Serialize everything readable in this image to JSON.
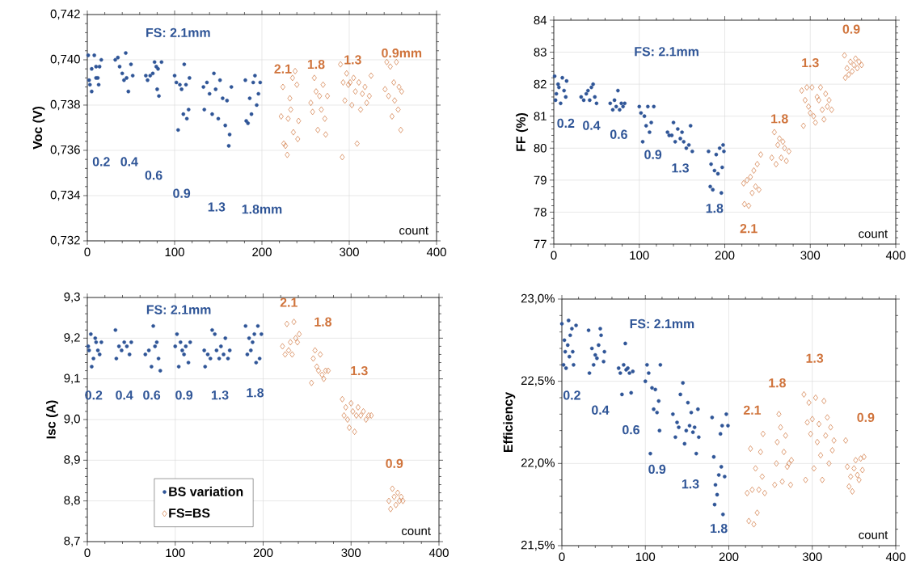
{
  "chart_data": [
    {
      "type": "scatter",
      "ylabel": "Voc (V)",
      "xlabel": "count",
      "grid": true,
      "xlim": [
        0,
        400
      ],
      "xticks": [
        0,
        100,
        200,
        300,
        400
      ],
      "ylim": [
        0.732,
        0.742
      ],
      "yticks": [
        {
          "value": 0.732,
          "label": "0,732"
        },
        {
          "value": 0.734,
          "label": "0,734"
        },
        {
          "value": 0.736,
          "label": "0,736"
        },
        {
          "value": 0.738,
          "label": "0,738"
        },
        {
          "value": 0.74,
          "label": "0,740"
        },
        {
          "value": 0.742,
          "label": "0,742"
        }
      ],
      "series": [
        {
          "color": "#2f5597",
          "marker": "circle",
          "x": [
            1,
            2,
            3,
            5,
            5,
            8,
            10,
            10,
            12,
            13,
            14,
            16,
            32,
            35,
            37,
            40,
            42,
            44,
            45,
            47,
            50,
            52,
            67,
            69,
            72,
            75,
            77,
            79,
            80,
            82,
            81,
            85,
            100,
            102,
            104,
            106,
            108,
            110,
            111,
            113,
            114,
            116,
            117,
            133,
            134,
            137,
            140,
            143,
            145,
            147,
            150,
            152,
            155,
            158,
            160,
            162,
            163,
            165,
            181,
            182,
            184,
            186,
            188,
            190,
            192,
            194,
            196,
            198
          ],
          "values": [
            0.7402,
            0.7391,
            0.7389,
            0.7396,
            0.7386,
            0.7402,
            0.7397,
            0.7392,
            0.7392,
            0.7389,
            0.7397,
            0.74,
            0.74,
            0.7401,
            0.7397,
            0.7394,
            0.7391,
            0.7403,
            0.7392,
            0.7386,
            0.7398,
            0.7393,
            0.7393,
            0.7391,
            0.7393,
            0.7394,
            0.7399,
            0.7397,
            0.7387,
            0.7384,
            0.7396,
            0.7399,
            0.7393,
            0.739,
            0.7369,
            0.7389,
            0.7387,
            0.7376,
            0.7398,
            0.7389,
            0.7374,
            0.7378,
            0.7392,
            0.7388,
            0.7378,
            0.739,
            0.7385,
            0.7376,
            0.7394,
            0.7387,
            0.7374,
            0.7391,
            0.7383,
            0.7371,
            0.7382,
            0.7362,
            0.7367,
            0.7388,
            0.7391,
            0.7373,
            0.7372,
            0.7383,
            0.7376,
            0.739,
            0.7393,
            0.738,
            0.7385,
            0.739
          ]
        },
        {
          "color": "#d0743c",
          "marker": "diamond",
          "x": [
            222,
            224,
            225,
            227,
            229,
            230,
            232,
            233,
            235,
            236,
            238,
            240,
            241,
            242,
            256,
            258,
            260,
            262,
            264,
            266,
            268,
            270,
            272,
            273,
            275,
            290,
            292,
            293,
            295,
            297,
            299,
            301,
            303,
            305,
            307,
            309,
            311,
            313,
            315,
            318,
            320,
            323,
            325,
            341,
            343,
            345,
            347,
            349,
            351,
            352,
            354,
            356,
            357,
            359,
            360
          ],
          "values": [
            0.7375,
            0.7388,
            0.7363,
            0.7362,
            0.7358,
            0.7374,
            0.7383,
            0.7378,
            0.7392,
            0.7368,
            0.7395,
            0.7389,
            0.7365,
            0.7373,
            0.7381,
            0.7377,
            0.7392,
            0.7386,
            0.7369,
            0.7384,
            0.7378,
            0.7389,
            0.7374,
            0.7367,
            0.7384,
            0.7398,
            0.7357,
            0.739,
            0.7382,
            0.7394,
            0.7389,
            0.739,
            0.738,
            0.7392,
            0.7386,
            0.7363,
            0.739,
            0.7378,
            0.7385,
            0.7388,
            0.7381,
            0.7384,
            0.7393,
            0.7387,
            0.7399,
            0.7384,
            0.7397,
            0.7375,
            0.739,
            0.7382,
            0.7399,
            0.7378,
            0.7388,
            0.7369,
            0.7386
          ]
        }
      ],
      "annotations": [
        "FS: 2.1mm",
        "0.2",
        "0.4",
        "0.6",
        "0.9",
        "1.3",
        "1.8mm",
        "2.1",
        "1.8",
        "1.3",
        "0.9mm"
      ]
    },
    {
      "type": "scatter",
      "ylabel": "FF (%)",
      "xlabel": "count",
      "grid": true,
      "xlim": [
        0,
        400
      ],
      "xticks": [
        0,
        100,
        200,
        300,
        400
      ],
      "ylim": [
        77,
        84
      ],
      "yticks": [
        77,
        78,
        79,
        80,
        81,
        82,
        83,
        84
      ],
      "series": [
        {
          "color": "#2f5597",
          "marker": "circle",
          "x": [
            1,
            2,
            3,
            5,
            6,
            8,
            10,
            12,
            14,
            15,
            32,
            35,
            38,
            40,
            42,
            44,
            46,
            48,
            50,
            66,
            69,
            71,
            73,
            75,
            77,
            79,
            81,
            83,
            100,
            102,
            104,
            106,
            108,
            110,
            112,
            114,
            117,
            133,
            135,
            138,
            140,
            142,
            145,
            148,
            150,
            152,
            155,
            158,
            160,
            162,
            181,
            183,
            184,
            186,
            188,
            190,
            192,
            194,
            196,
            197,
            198,
            199
          ],
          "values": [
            82.25,
            81.5,
            81.7,
            82.0,
            81.9,
            81.4,
            82.2,
            81.8,
            81.6,
            82.1,
            81.6,
            81.5,
            81.7,
            81.8,
            81.5,
            81.9,
            82.0,
            81.6,
            81.4,
            81.4,
            81.2,
            81.5,
            81.3,
            81.8,
            81.2,
            81.4,
            81.3,
            81.4,
            81.3,
            81.1,
            80.2,
            81.0,
            80.7,
            81.3,
            80.5,
            80.8,
            81.3,
            80.5,
            80.4,
            80.4,
            80.8,
            80.2,
            80.6,
            80.3,
            80.5,
            80.2,
            80.0,
            80.1,
            80.7,
            79.9,
            79.9,
            78.8,
            79.5,
            78.7,
            79.3,
            79.8,
            79.2,
            80.0,
            78.6,
            79.4,
            80.1,
            79.9
          ]
        },
        {
          "color": "#d0743c",
          "marker": "diamond",
          "x": [
            222,
            223,
            226,
            228,
            230,
            232,
            234,
            236,
            238,
            240,
            242,
            255,
            258,
            260,
            262,
            264,
            266,
            268,
            270,
            272,
            275,
            290,
            292,
            294,
            296,
            298,
            300,
            302,
            304,
            306,
            308,
            310,
            312,
            314,
            316,
            318,
            320,
            322,
            325,
            340,
            341,
            343,
            345,
            347,
            349,
            351,
            353,
            355,
            357,
            360
          ],
          "values": [
            78.9,
            78.25,
            79.0,
            78.2,
            79.1,
            78.6,
            79.3,
            78.8,
            79.5,
            78.7,
            79.8,
            79.7,
            80.5,
            79.5,
            80.1,
            80.3,
            79.7,
            80.2,
            80.0,
            79.6,
            79.9,
            81.8,
            80.7,
            81.5,
            81.9,
            81.3,
            81.1,
            81.9,
            81.0,
            80.8,
            81.6,
            81.5,
            81.9,
            81.2,
            80.9,
            81.7,
            81.3,
            81.5,
            81.2,
            82.9,
            82.2,
            82.5,
            82.3,
            82.7,
            82.4,
            82.6,
            82.8,
            82.5,
            82.7,
            82.6
          ]
        }
      ],
      "annotations": [
        "FS: 2.1mm",
        "0.2",
        "0.4",
        "0.6",
        "0.9",
        "1.3",
        "1.8",
        "2.1",
        "1.8",
        "1.3",
        "0.9"
      ]
    },
    {
      "type": "scatter",
      "ylabel": "Isc (A)",
      "xlabel": "count",
      "grid": true,
      "legend": "bottom left",
      "xlim": [
        0,
        400
      ],
      "xticks": [
        0,
        100,
        200,
        300,
        400
      ],
      "ylim": [
        8.7,
        9.3
      ],
      "yticks": [
        {
          "value": 8.7,
          "label": "8,7"
        },
        {
          "value": 8.8,
          "label": "8,8"
        },
        {
          "value": 8.9,
          "label": "8,9"
        },
        {
          "value": 9.0,
          "label": "9,0"
        },
        {
          "value": 9.1,
          "label": "9,1"
        },
        {
          "value": 9.2,
          "label": "9,2"
        },
        {
          "value": 9.3,
          "label": "9,3"
        }
      ],
      "series": [
        {
          "name": "BS variation",
          "color": "#2f5597",
          "marker": "circle",
          "x": [
            1,
            2,
            4,
            5,
            7,
            9,
            10,
            12,
            14,
            16,
            32,
            33,
            36,
            39,
            42,
            45,
            48,
            50,
            66,
            70,
            73,
            75,
            77,
            79,
            81,
            83,
            100,
            102,
            104,
            106,
            108,
            110,
            112,
            115,
            117,
            133,
            134,
            137,
            140,
            142,
            145,
            147,
            150,
            152,
            155,
            157,
            160,
            162,
            180,
            182,
            184,
            186,
            188,
            190,
            192,
            194,
            196,
            198
          ],
          "values": [
            9.18,
            9.17,
            9.21,
            9.13,
            9.15,
            9.2,
            9.19,
            9.17,
            9.16,
            9.19,
            9.22,
            9.15,
            9.18,
            9.17,
            9.19,
            9.18,
            9.16,
            9.19,
            9.16,
            9.17,
            9.13,
            9.23,
            9.18,
            9.19,
            9.15,
            9.12,
            9.18,
            9.21,
            9.13,
            9.19,
            9.17,
            9.16,
            9.18,
            9.14,
            9.19,
            9.17,
            9.13,
            9.16,
            9.15,
            9.22,
            9.21,
            9.17,
            9.15,
            9.18,
            9.16,
            9.2,
            9.15,
            9.17,
            9.23,
            9.16,
            9.2,
            9.17,
            9.19,
            9.21,
            9.14,
            9.23,
            9.15,
            9.21
          ]
        },
        {
          "name": "FS=BS",
          "color": "#d0743c",
          "marker": "diamond",
          "x": [
            222,
            225,
            227,
            229,
            231,
            233,
            235,
            237,
            239,
            241,
            255,
            257,
            259,
            261,
            263,
            265,
            267,
            269,
            271,
            274,
            290,
            292,
            294,
            296,
            298,
            300,
            302,
            304,
            306,
            308,
            311,
            314,
            317,
            320,
            323,
            343,
            345,
            347,
            349,
            351,
            353,
            355,
            357,
            359
          ],
          "values": [
            9.18,
            9.16,
            9.235,
            9.17,
            9.19,
            9.16,
            9.24,
            9.2,
            9.19,
            9.21,
            9.09,
            9.15,
            9.17,
            9.13,
            9.12,
            9.16,
            9.11,
            9.1,
            9.12,
            9.12,
            9.05,
            9.01,
            9.03,
            9.0,
            8.98,
            9.04,
            9.02,
            8.97,
            9.01,
            9.03,
            9.01,
            9.02,
            9.0,
            9.01,
            9.01,
            8.8,
            8.78,
            8.83,
            8.81,
            8.79,
            8.82,
            8.8,
            8.81,
            8.8
          ]
        }
      ],
      "annotations": [
        "FS: 2.1mm",
        "0.2",
        "0.4",
        "0.6",
        "0.9",
        "1.3",
        "1.8",
        "2.1",
        "1.8",
        "1.3",
        "0.9"
      ]
    },
    {
      "type": "scatter",
      "ylabel": "Efficiency",
      "xlabel": "count",
      "grid": true,
      "xlim": [
        0,
        400
      ],
      "xticks": [
        0,
        100,
        200,
        300,
        400
      ],
      "ylim": [
        21.5,
        23.0
      ],
      "yticks": [
        {
          "value": 21.5,
          "label": "21,5%"
        },
        {
          "value": 22.0,
          "label": "22,0%"
        },
        {
          "value": 22.5,
          "label": "22,5%"
        },
        {
          "value": 23.0,
          "label": "23,0%"
        }
      ],
      "series": [
        {
          "color": "#2f5597",
          "marker": "circle",
          "x": [
            0,
            2,
            3,
            4,
            5,
            7,
            8,
            9,
            10,
            12,
            13,
            14,
            17,
            32,
            33,
            36,
            38,
            40,
            42,
            44,
            46,
            47,
            50,
            51,
            68,
            70,
            72,
            74,
            76,
            77,
            79,
            81,
            83,
            85,
            100,
            102,
            104,
            106,
            108,
            110,
            112,
            114,
            116,
            117,
            118,
            133,
            136,
            138,
            140,
            142,
            145,
            147,
            149,
            151,
            153,
            155,
            157,
            159,
            161,
            163,
            164,
            180,
            182,
            183,
            184,
            186,
            188,
            190,
            191,
            192,
            193,
            195,
            197,
            199
          ],
          "values": [
            22.85,
            22.6,
            22.75,
            22.68,
            22.58,
            22.72,
            22.87,
            22.65,
            22.78,
            22.82,
            22.68,
            22.6,
            22.84,
            22.81,
            22.55,
            22.7,
            22.6,
            22.66,
            22.64,
            22.72,
            22.82,
            22.78,
            22.62,
            22.68,
            22.58,
            22.55,
            22.42,
            22.6,
            22.73,
            22.57,
            22.58,
            22.55,
            22.43,
            22.56,
            22.5,
            22.6,
            22.55,
            22.06,
            22.46,
            22.33,
            22.45,
            22.31,
            22.38,
            22.2,
            22.6,
            22.3,
            22.16,
            22.25,
            22.22,
            22.42,
            22.49,
            22.12,
            22.2,
            22.37,
            22.23,
            22.31,
            22.19,
            22.22,
            22.06,
            22.33,
            22.16,
            22.28,
            22.04,
            21.75,
            21.87,
            21.81,
            21.93,
            22.18,
            21.98,
            22.23,
            21.69,
            21.92,
            22.3,
            22.23
          ]
        },
        {
          "color": "#d0743c",
          "marker": "diamond",
          "x": [
            222,
            224,
            226,
            228,
            230,
            232,
            234,
            236,
            238,
            240,
            241,
            243,
            255,
            257,
            258,
            260,
            262,
            264,
            266,
            268,
            270,
            272,
            274,
            275,
            290,
            292,
            294,
            296,
            298,
            300,
            302,
            304,
            306,
            308,
            310,
            312,
            314,
            316,
            318,
            320,
            322,
            324,
            326,
            340,
            342,
            344,
            346,
            348,
            350,
            352,
            354,
            356,
            358,
            360,
            362
          ],
          "values": [
            21.82,
            21.65,
            22.09,
            21.84,
            21.63,
            21.97,
            21.7,
            21.84,
            22.07,
            21.92,
            22.18,
            21.82,
            21.87,
            22.0,
            22.13,
            22.3,
            22.22,
            21.89,
            22.07,
            22.17,
            21.98,
            22.0,
            21.87,
            22.02,
            22.42,
            21.9,
            22.25,
            22.37,
            22.18,
            22.27,
            21.97,
            22.4,
            22.13,
            22.24,
            22.05,
            21.9,
            22.38,
            22.17,
            22.28,
            22.0,
            22.22,
            22.08,
            22.14,
            22.14,
            21.98,
            21.86,
            21.92,
            21.83,
            21.97,
            22.02,
            21.93,
            21.9,
            22.03,
            21.96,
            22.04
          ]
        }
      ],
      "annotations": [
        "FS: 2.1mm",
        "0.2",
        "0.4",
        "0.6",
        "0.9",
        "1.3",
        "1.8",
        "2.1",
        "1.8",
        "1.3",
        "0.9"
      ]
    }
  ]
}
